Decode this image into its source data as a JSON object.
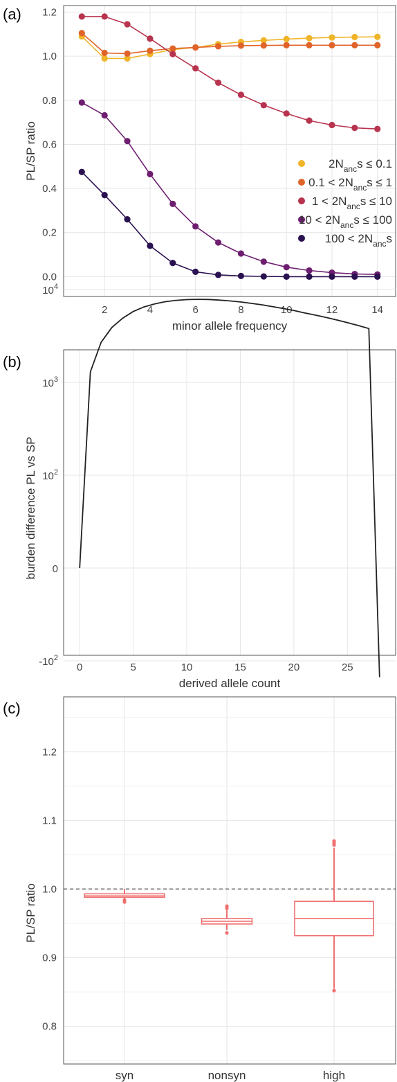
{
  "chart_data": [
    {
      "panel": "(a)",
      "type": "line",
      "xlabel": "minor allele frequency",
      "ylabel": "PL/SP ratio",
      "xlim": [
        0.2,
        14.8
      ],
      "ylim": [
        -0.09,
        1.23
      ],
      "xticks": [
        2,
        4,
        6,
        8,
        10,
        12,
        14
      ],
      "yticks": [
        0.0,
        0.2,
        0.4,
        0.6,
        0.8,
        1.0,
        1.2
      ],
      "x": [
        1,
        2,
        3,
        4,
        5,
        6,
        7,
        8,
        9,
        10,
        11,
        12,
        13,
        14
      ],
      "grid": true,
      "legend_position": "right",
      "series": [
        {
          "name": "2N_anc s ≤ 0.1",
          "legend": {
            "pre": "",
            "mid": "2N",
            "sub": "anc",
            "post": "s ≤ 0.1"
          },
          "color": "#f0b429",
          "values": [
            1.09,
            0.99,
            0.99,
            1.01,
            1.03,
            1.04,
            1.055,
            1.065,
            1.072,
            1.078,
            1.082,
            1.085,
            1.087,
            1.088
          ]
        },
        {
          "name": "0.1 < 2N_anc s ≤ 1",
          "legend": {
            "pre": "0.1 <",
            "mid": "2N",
            "sub": "anc",
            "post": "s ≤ 1"
          },
          "color": "#e0642a",
          "values": [
            1.105,
            1.015,
            1.012,
            1.025,
            1.035,
            1.04,
            1.045,
            1.048,
            1.049,
            1.05,
            1.05,
            1.05,
            1.05,
            1.05
          ]
        },
        {
          "name": "1 < 2N_anc s ≤ 10",
          "legend": {
            "pre": "1 <",
            "mid": "2N",
            "sub": "anc",
            "post": "s ≤ 10"
          },
          "color": "#b8344e",
          "values": [
            1.18,
            1.18,
            1.145,
            1.08,
            1.01,
            0.945,
            0.88,
            0.825,
            0.778,
            0.74,
            0.708,
            0.688,
            0.675,
            0.67
          ]
        },
        {
          "name": "10 < 2N_anc s ≤ 100",
          "legend": {
            "pre": "10 <",
            "mid": "2N",
            "sub": "anc",
            "post": "s ≤ 100"
          },
          "color": "#6e1e70",
          "values": [
            0.79,
            0.732,
            0.615,
            0.465,
            0.33,
            0.228,
            0.155,
            0.105,
            0.068,
            0.043,
            0.028,
            0.018,
            0.012,
            0.01
          ]
        },
        {
          "name": "100 < 2N_anc s",
          "legend": {
            "pre": "100 <",
            "mid": "2N",
            "sub": "anc",
            "post": "s"
          },
          "color": "#2a1150",
          "values": [
            0.475,
            0.37,
            0.26,
            0.14,
            0.062,
            0.022,
            0.008,
            0.003,
            0.001,
            0.0,
            0.0,
            0.0,
            0.0,
            0.0
          ]
        }
      ]
    },
    {
      "panel": "(b)",
      "type": "line",
      "xlabel": "derived allele count",
      "ylabel": "burden difference PL vs SP",
      "y_scale": "symlog",
      "xlim": [
        -1.5,
        29.5
      ],
      "xticks": [
        0,
        5,
        10,
        15,
        20,
        25
      ],
      "yticks": [
        {
          "base": "-10",
          "exp": "2",
          "value": -100
        },
        {
          "base": "0",
          "exp": "",
          "value": 0
        },
        {
          "base": "10",
          "exp": "2",
          "value": 100
        },
        {
          "base": "10",
          "exp": "3",
          "value": 1000
        },
        {
          "base": "10",
          "exp": "4",
          "value": 10000
        }
      ],
      "grid": true,
      "color": "#222222",
      "x": [
        0,
        1,
        2,
        3,
        4,
        5,
        6,
        7,
        8,
        9,
        10,
        11,
        12,
        13,
        14,
        15,
        16,
        17,
        18,
        19,
        20,
        21,
        22,
        23,
        24,
        25,
        26,
        27,
        28
      ],
      "values": [
        0,
        1300,
        2700,
        3900,
        4900,
        5800,
        6500,
        7000,
        7400,
        7650,
        7800,
        7850,
        7820,
        7700,
        7550,
        7350,
        7100,
        6850,
        6550,
        6250,
        5950,
        5600,
        5300,
        5000,
        4700,
        4400,
        4100,
        3800,
        -150
      ]
    },
    {
      "panel": "(c)",
      "type": "box",
      "ylabel": "PL/SP ratio",
      "ylim": [
        0.745,
        1.28
      ],
      "yticks": [
        0.8,
        0.9,
        1.0,
        1.1,
        1.2
      ],
      "reference_line": 1.0,
      "grid": true,
      "color": "#f07070",
      "categories": [
        "syn",
        "nonsyn",
        "high"
      ],
      "boxes": [
        {
          "whisker_low": 0.986,
          "q1": 0.988,
          "median": 0.99,
          "q3": 0.993,
          "whisker_high": 1.0,
          "outliers": [
            0.981,
            0.984
          ]
        },
        {
          "whisker_low": 0.94,
          "q1": 0.949,
          "median": 0.953,
          "q3": 0.957,
          "whisker_high": 0.97,
          "outliers": [
            0.936,
            0.972,
            0.975
          ]
        },
        {
          "whisker_low": 0.855,
          "q1": 0.932,
          "median": 0.957,
          "q3": 0.982,
          "whisker_high": 1.06,
          "outliers": [
            0.852,
            1.064,
            1.067,
            1.07
          ]
        }
      ]
    }
  ]
}
